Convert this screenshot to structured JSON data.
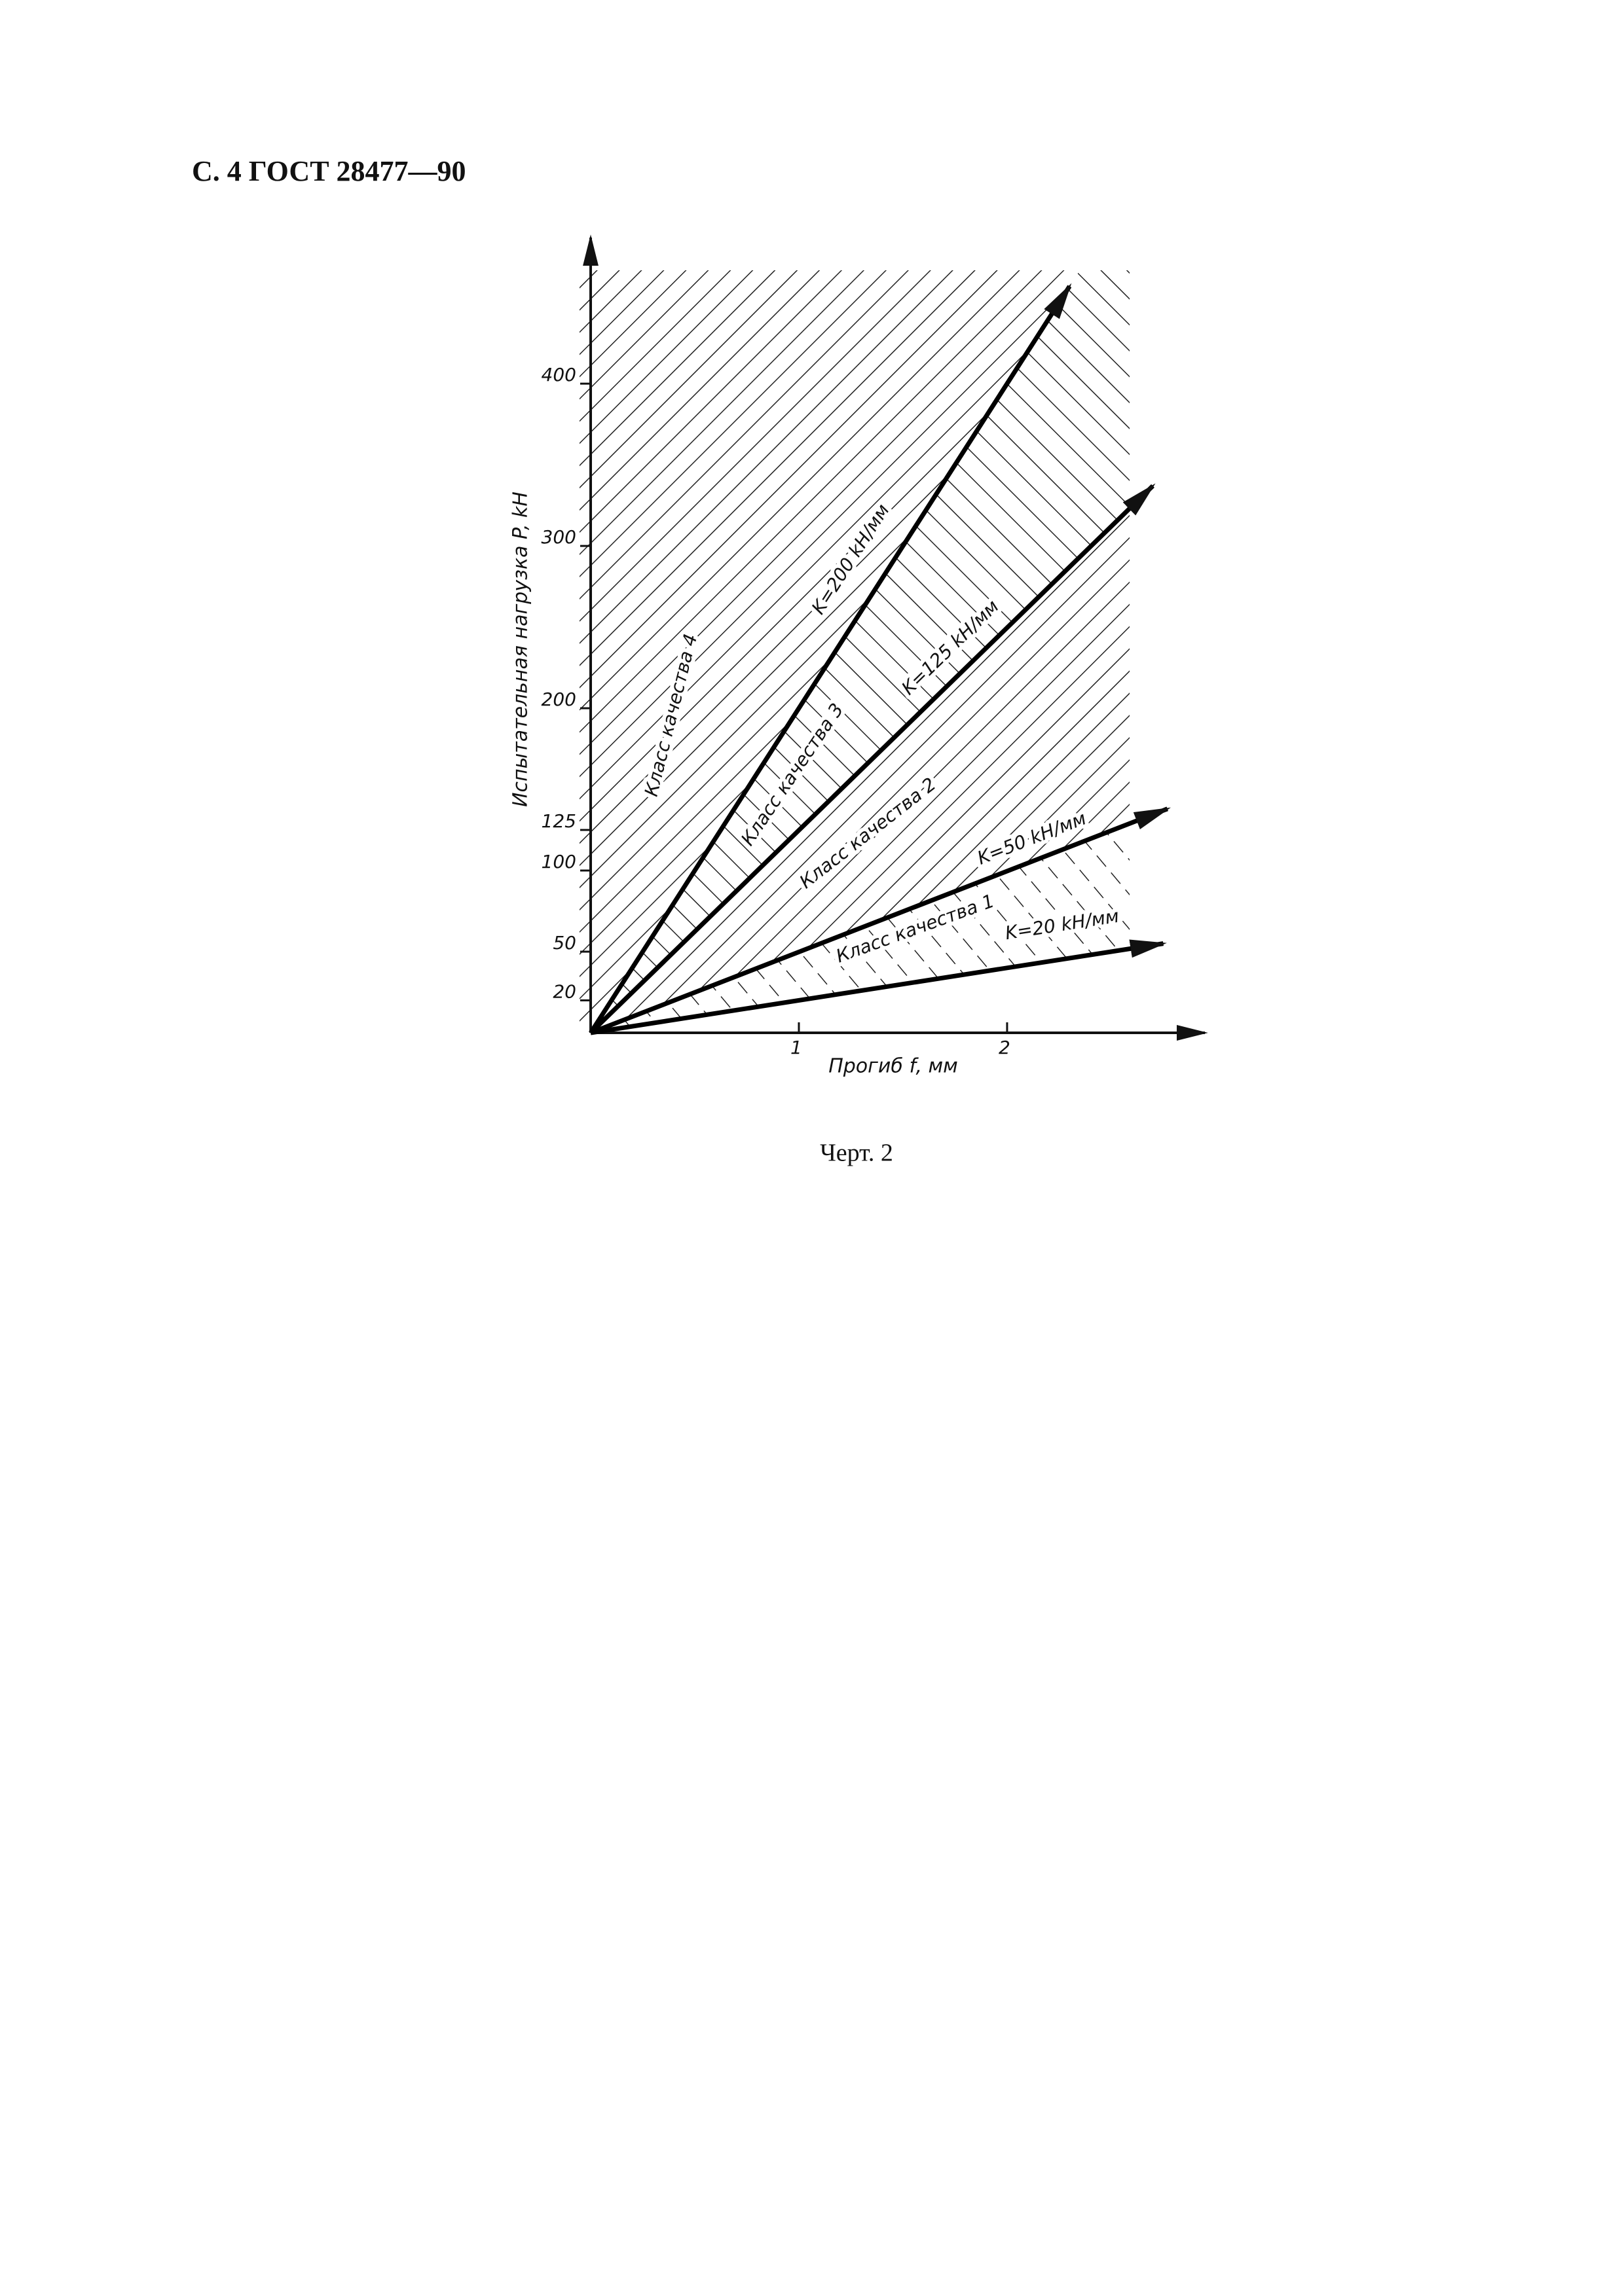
{
  "header": "С. 4 ГОСТ 28477—90",
  "chart_data": {
    "type": "line",
    "y_label": "Испытательная нагрузка P, kН",
    "x_label": "Прогиб f, мм",
    "xlim": [
      0,
      2.95
    ],
    "ylim": [
      0,
      490
    ],
    "xticks": [
      1,
      2
    ],
    "yticks": [
      20,
      50,
      100,
      125,
      200,
      300,
      400
    ],
    "series": [
      {
        "name": "K=200 kН/мм",
        "color": "#000000",
        "x": [
          0,
          2.3
        ],
        "values": [
          0,
          460
        ]
      },
      {
        "name": "K=125 kН/мм",
        "color": "#000000",
        "x": [
          0,
          2.7
        ],
        "values": [
          0,
          337
        ]
      },
      {
        "name": "K=50 kН/мм",
        "color": "#000000",
        "x": [
          0,
          2.77
        ],
        "values": [
          0,
          138
        ]
      },
      {
        "name": "K=20 kН/мм",
        "color": "#000000",
        "x": [
          0,
          2.75
        ],
        "values": [
          0,
          55
        ]
      }
    ],
    "annotations": [
      "Класс качества 4",
      "Класс качества 3",
      "Класс качества 2",
      "Класс качества 1"
    ]
  },
  "caption": "Черт. 2"
}
